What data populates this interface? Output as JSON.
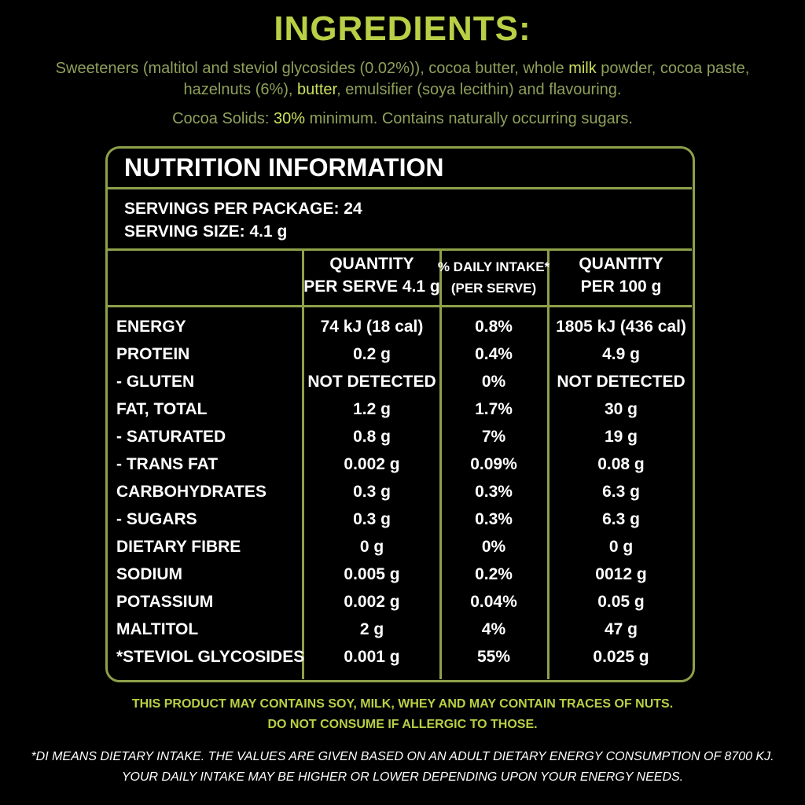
{
  "ingredients": {
    "title": "INGREDIENTS:",
    "text": [
      {
        "text": "Sweeteners (maltitol and steviol glycosides (0.02%)), cocoa butter, whole ",
        "highlight": false
      },
      {
        "text": "milk",
        "highlight": true
      },
      {
        "text": " powder, cocoa paste, hazelnuts (6%), ",
        "highlight": false
      },
      {
        "text": "butter",
        "highlight": true
      },
      {
        "text": ", emulsifier (soya lecithin) and flavouring.",
        "highlight": false
      }
    ],
    "cocoa": [
      {
        "text": "Cocoa Solids: ",
        "highlight": false
      },
      {
        "text": "30%",
        "highlight": true
      },
      {
        "text": " minimum. Contains naturally occurring sugars.",
        "highlight": false
      }
    ]
  },
  "nutrition": {
    "title": "NUTRITION INFORMATION",
    "servings": [
      "SERVINGS PER PACKAGE: 24",
      "SERVING SIZE: 4.1 g"
    ],
    "headers": [
      [
        "QUANTITY",
        "PER SERVE 4.1 g"
      ],
      [
        "% DAILY INTAKE*",
        "(PER SERVE)"
      ],
      [
        "QUANTITY",
        "PER 100 g"
      ]
    ],
    "rows": [
      [
        "ENERGY",
        "74 kJ (18 cal)",
        "0.8%",
        "1805 kJ (436 cal)"
      ],
      [
        "PROTEIN",
        "0.2 g",
        "0.4%",
        "4.9 g"
      ],
      [
        "- GLUTEN",
        "NOT DETECTED",
        "0%",
        "NOT DETECTED"
      ],
      [
        "FAT, TOTAL",
        "1.2 g",
        "1.7%",
        "30 g"
      ],
      [
        "- SATURATED",
        "0.8 g",
        "7%",
        "19 g"
      ],
      [
        "- TRANS FAT",
        "0.002 g",
        "0.09%",
        "0.08 g"
      ],
      [
        "CARBOHYDRATES",
        "0.3 g",
        "0.3%",
        "6.3 g"
      ],
      [
        "- SUGARS",
        "0.3 g",
        "0.3%",
        "6.3 g"
      ],
      [
        "DIETARY FIBRE",
        "0 g",
        "0%",
        "0 g"
      ],
      [
        "SODIUM",
        "0.005 g",
        "0.2%",
        "0012 g"
      ],
      [
        "POTASSIUM",
        "0.002 g",
        "0.04%",
        "0.05 g"
      ],
      [
        "MALTITOL",
        "2 g",
        "4%",
        "47 g"
      ],
      [
        "*STEVIOL GLYCOSIDES",
        "0.001 g",
        "55%",
        "0.025 g"
      ]
    ]
  },
  "allergens": [
    "THIS PRODUCT MAY CONTAINS SOY, MILK, WHEY AND MAY CONTAIN TRACES OF NUTS.",
    "DO NOT CONSUME IF ALLERGIC TO THOSE."
  ],
  "footnote": [
    "*DI MEANS DIETARY INTAKE. THE VALUES ARE GIVEN BASED ON AN ADULT DIETARY ENERGY CONSUMPTION OF 8700 KJ.",
    "YOUR DAILY INTAKE MAY BE HIGHER OR LOWER DEPENDING UPON YOUR ENERGY NEEDS."
  ]
}
